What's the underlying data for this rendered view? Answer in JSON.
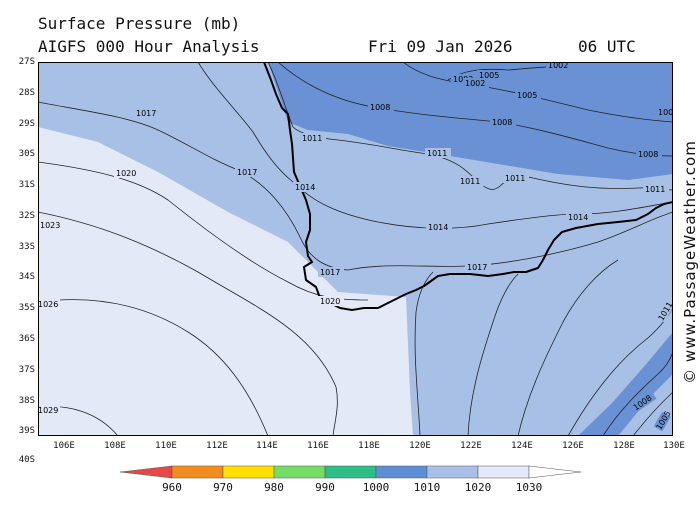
{
  "header": {
    "title": "Surface Pressure (mb)",
    "subtitle": "AIGFS 000 Hour Analysis",
    "date": "Fri 09 Jan 2026",
    "time": "06 UTC"
  },
  "watermark": "© www.PassageWeather.com",
  "lat_labels": [
    "27S",
    "28S",
    "29S",
    "30S",
    "31S",
    "32S",
    "33S",
    "34S",
    "35S",
    "36S",
    "37S",
    "38S",
    "39S",
    "40S"
  ],
  "lon_labels": [
    "106E",
    "108E",
    "110E",
    "112E",
    "114E",
    "116E",
    "118E",
    "120E",
    "122E",
    "124E",
    "126E",
    "128E",
    "130E"
  ],
  "isobar_labels": [
    "1002",
    "1002",
    "1005",
    "1002",
    "1005",
    "1008",
    "1008",
    "1008",
    "1008",
    "1011",
    "1011",
    "1011",
    "1011",
    "1011",
    "1014",
    "1014",
    "1014",
    "1017",
    "1017",
    "1017",
    "1017",
    "1020",
    "1020",
    "1023",
    "1026",
    "1029",
    "1011",
    "1008",
    "1005",
    "1002"
  ],
  "legend": {
    "values": [
      "960",
      "970",
      "980",
      "990",
      "1000",
      "1010",
      "1020",
      "1030"
    ],
    "colors": [
      "#e8474a",
      "#f28c1c",
      "#ffe000",
      "#74dd66",
      "#2dbd86",
      "#5e8fd4",
      "#a8c0e6",
      "#e3e9f6",
      "#ffffff"
    ]
  },
  "colors": {
    "land_outline": "#000000",
    "isobar": "#222222",
    "band_1000_1010": "#6991d3",
    "band_1010_1020": "#a8c0e6",
    "band_1020_1030": "#e3e9f6"
  }
}
